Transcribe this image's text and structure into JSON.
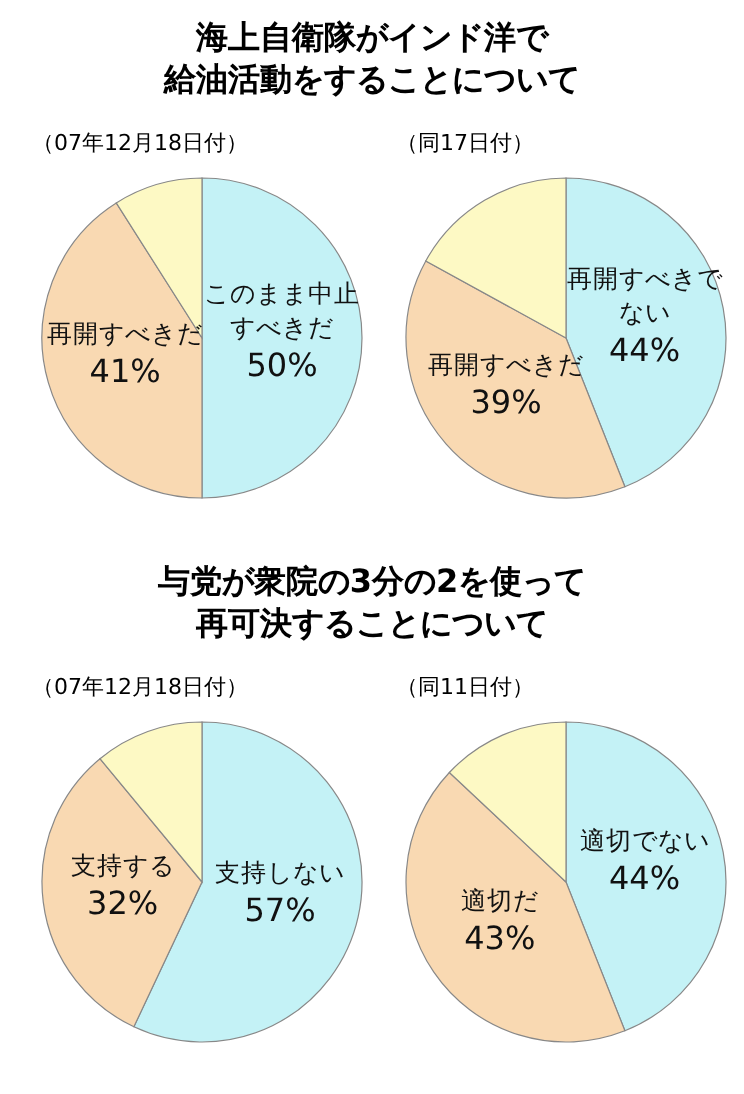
{
  "chart_data": [
    {
      "type": "pie",
      "title": "海上自衛隊がインド洋で給油活動をすることについて",
      "subtitle": "（07年12月18日付）",
      "categories": [
        "このまま中止すべきだ",
        "再開すべきだ",
        null
      ],
      "values": [
        50,
        41,
        9
      ],
      "value_labels": [
        "50%",
        "41%",
        null
      ],
      "colors": [
        "#c4f2f6",
        "#f9d9b2",
        "#fdf9c4"
      ]
    },
    {
      "type": "pie",
      "subtitle": "（同17日付）",
      "categories": [
        "再開すべきでない",
        "再開すべきだ",
        null
      ],
      "values": [
        44,
        39,
        17
      ],
      "value_labels": [
        "44%",
        "39%",
        null
      ],
      "colors": [
        "#c4f2f6",
        "#f9d9b2",
        "#fdf9c4"
      ]
    },
    {
      "type": "pie",
      "title": "与党が衆院の3分の2を使って再可決することについて",
      "subtitle": "（07年12月18日付）",
      "categories": [
        "支持しない",
        "支持する",
        null
      ],
      "values": [
        57,
        32,
        11
      ],
      "value_labels": [
        "57%",
        "32%",
        null
      ],
      "colors": [
        "#c4f2f6",
        "#f9d9b2",
        "#fdf9c4"
      ]
    },
    {
      "type": "pie",
      "subtitle": "（同11日付）",
      "categories": [
        "適切でない",
        "適切だ",
        null
      ],
      "values": [
        44,
        43,
        13
      ],
      "value_labels": [
        "44%",
        "43%",
        null
      ],
      "colors": [
        "#c4f2f6",
        "#f9d9b2",
        "#fdf9c4"
      ]
    }
  ]
}
